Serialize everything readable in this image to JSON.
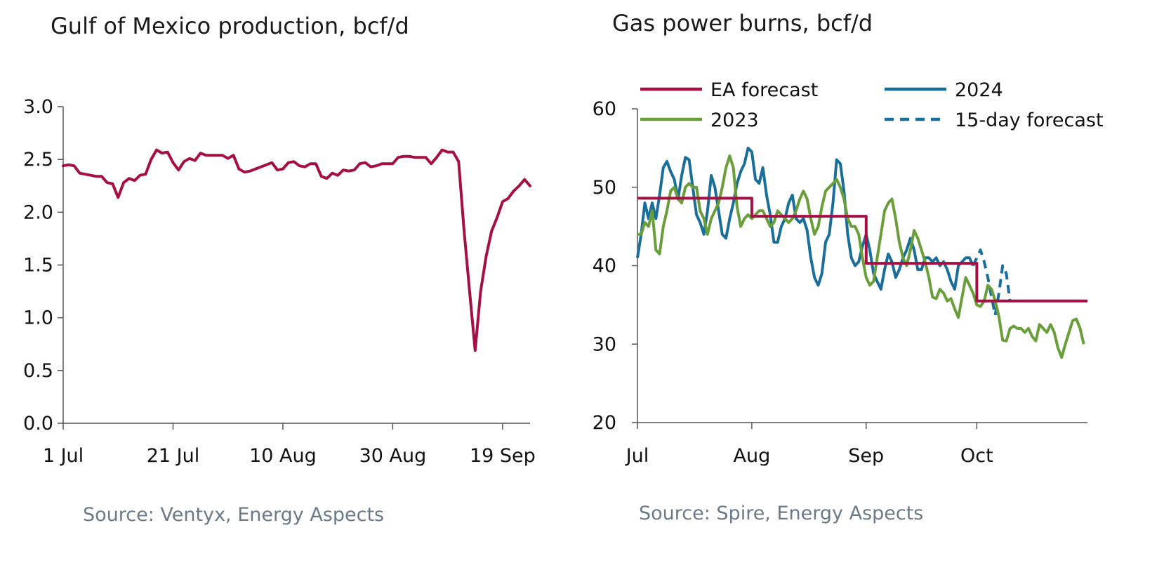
{
  "chart_data": [
    {
      "type": "line",
      "title": "Gulf of Mexico production, bcf/d",
      "source": "Source: Ventyx, Energy Aspects",
      "x_tick_labels": [
        "1 Jul",
        "21 Jul",
        "10 Aug",
        "30 Aug",
        "19 Sep"
      ],
      "x_ticks_day": [
        0,
        20,
        40,
        60,
        80
      ],
      "y_tick_labels": [
        "0.0",
        "0.5",
        "1.0",
        "1.5",
        "2.0",
        "2.5",
        "3.0"
      ],
      "ylim": [
        0,
        3
      ],
      "xlim_days": [
        0,
        85
      ],
      "grid": false,
      "colors": {
        "line": "#a50f43",
        "axis": "#555555"
      },
      "series": [
        {
          "x_day": [
            0,
            1,
            2,
            3,
            4,
            5,
            6,
            7,
            8,
            9,
            10,
            11,
            12,
            13,
            14,
            15,
            16,
            17,
            18,
            19,
            20,
            21,
            22,
            23,
            24,
            25,
            26,
            27,
            28,
            29,
            30,
            31,
            32,
            33,
            34,
            35,
            36,
            37,
            38,
            39,
            40,
            41,
            42,
            43,
            44,
            45,
            46,
            47,
            48,
            49,
            50,
            51,
            52,
            53,
            54,
            55,
            56,
            57,
            58,
            59,
            60,
            61,
            62,
            63,
            64,
            65,
            66,
            67,
            68,
            69,
            70,
            71,
            72,
            73,
            74,
            75,
            76,
            77,
            78,
            79,
            80,
            81,
            82,
            83,
            84,
            85
          ],
          "values": [
            2.44,
            2.45,
            2.44,
            2.37,
            2.36,
            2.35,
            2.34,
            2.34,
            2.28,
            2.27,
            2.14,
            2.28,
            2.32,
            2.3,
            2.35,
            2.36,
            2.5,
            2.59,
            2.56,
            2.57,
            2.47,
            2.4,
            2.48,
            2.51,
            2.49,
            2.56,
            2.54,
            2.54,
            2.54,
            2.54,
            2.51,
            2.54,
            2.41,
            2.38,
            2.39,
            2.41,
            2.43,
            2.45,
            2.47,
            2.4,
            2.41,
            2.47,
            2.48,
            2.44,
            2.43,
            2.46,
            2.46,
            2.34,
            2.32,
            2.37,
            2.35,
            2.4,
            2.39,
            2.4,
            2.46,
            2.47,
            2.43,
            2.44,
            2.46,
            2.46,
            2.46,
            2.52,
            2.53,
            2.53,
            2.52,
            2.52,
            2.52,
            2.46,
            2.52,
            2.59,
            2.57,
            2.57,
            2.48,
            1.82,
            1.25,
            0.69,
            1.25,
            1.58,
            1.82,
            1.95,
            2.1,
            2.13,
            2.2,
            2.25,
            2.31,
            2.25
          ]
        }
      ]
    },
    {
      "type": "line",
      "title": "Gas power burns, bcf/d",
      "source": "Source: Spire, Energy Aspects",
      "x_tick_labels": [
        "Jul",
        "Aug",
        "Sep",
        "Oct"
      ],
      "x_ticks_day": [
        0,
        31,
        62,
        92
      ],
      "y_tick_labels": [
        "20",
        "30",
        "40",
        "50",
        "60"
      ],
      "ylim": [
        20,
        60
      ],
      "xlim_days": [
        0,
        122
      ],
      "grid": false,
      "legend": "top",
      "colors": {
        "ea": "#a50f43",
        "y2024": "#1a6f9a",
        "y2023": "#6a9e3a",
        "axis": "#555555"
      },
      "series": [
        {
          "name": "EA forecast",
          "style": "solid",
          "x_day": [
            0,
            31,
            31,
            62,
            62,
            92,
            92,
            122
          ],
          "values": [
            48.6,
            48.6,
            46.3,
            46.3,
            40.3,
            40.3,
            35.5,
            35.5
          ]
        },
        {
          "name": "2024",
          "style": "solid",
          "x_day": [
            0,
            1,
            2,
            3,
            4,
            5,
            6,
            7,
            8,
            9,
            10,
            11,
            12,
            13,
            14,
            15,
            16,
            17,
            18,
            19,
            20,
            21,
            22,
            23,
            24,
            25,
            26,
            27,
            28,
            29,
            30,
            31,
            32,
            33,
            34,
            35,
            36,
            37,
            38,
            39,
            40,
            41,
            42,
            43,
            44,
            45,
            46,
            47,
            48,
            49,
            50,
            51,
            52,
            53,
            54,
            55,
            56,
            57,
            58,
            59,
            60,
            61,
            62,
            63,
            64,
            65,
            66,
            67,
            68,
            69,
            70,
            71,
            72,
            73,
            74,
            75,
            76,
            77,
            78,
            79,
            80,
            81,
            82,
            83,
            84,
            85,
            86,
            87,
            88,
            89,
            90,
            91
          ],
          "values": [
            41,
            44,
            48,
            46,
            48,
            46,
            49,
            52.5,
            53.3,
            52,
            51,
            48.5,
            51.5,
            53.8,
            53.5,
            50,
            46.5,
            45.5,
            44,
            47,
            51.5,
            50,
            47,
            44,
            43.5,
            46,
            48,
            50.5,
            52,
            53,
            55,
            54.5,
            51,
            50.5,
            52.5,
            49,
            46.5,
            43,
            43,
            45,
            46,
            48,
            49,
            46,
            45.5,
            46,
            44.5,
            41,
            38.5,
            37.5,
            39,
            43,
            44,
            48,
            53.5,
            53,
            49.5,
            44,
            41,
            40,
            40.5,
            42.5,
            44,
            42,
            39,
            38,
            37,
            39.5,
            41.5,
            40.5,
            38.5,
            39.5,
            41,
            42,
            43.5,
            42,
            39.5,
            39.5,
            41,
            41,
            40.5,
            41,
            40,
            40.5,
            39.5,
            38,
            37,
            40,
            40.5,
            41,
            41,
            40
          ]
        },
        {
          "name": "15-day forecast",
          "style": "dashed",
          "x_day": [
            91,
            92,
            93,
            94,
            95,
            96,
            97,
            98,
            99,
            100,
            101
          ],
          "values": [
            40,
            41,
            42,
            40.5,
            38.5,
            36,
            33.7,
            36.5,
            40,
            39,
            35.5
          ]
        },
        {
          "name": "2023",
          "style": "solid",
          "x_day": [
            0,
            1,
            2,
            3,
            4,
            5,
            6,
            7,
            8,
            9,
            10,
            11,
            12,
            13,
            14,
            15,
            16,
            17,
            18,
            19,
            20,
            21,
            22,
            23,
            24,
            25,
            26,
            27,
            28,
            29,
            30,
            31,
            32,
            33,
            34,
            35,
            36,
            37,
            38,
            39,
            40,
            41,
            42,
            43,
            44,
            45,
            46,
            47,
            48,
            49,
            50,
            51,
            52,
            53,
            54,
            55,
            56,
            57,
            58,
            59,
            60,
            61,
            62,
            63,
            64,
            65,
            66,
            67,
            68,
            69,
            70,
            71,
            72,
            73,
            74,
            75,
            76,
            77,
            78,
            79,
            80,
            81,
            82,
            83,
            84,
            85,
            86,
            87,
            88,
            89,
            90,
            91,
            92,
            93,
            94,
            95,
            96,
            97,
            98,
            99,
            100,
            101,
            102,
            103,
            104,
            105,
            106,
            107,
            108,
            109,
            110,
            111,
            112,
            113,
            114,
            115,
            116,
            117,
            118,
            119,
            120,
            121
          ],
          "values": [
            44,
            44,
            45.5,
            45,
            47,
            42,
            41.5,
            45,
            47,
            49.5,
            50,
            48.5,
            48,
            50,
            50.5,
            50,
            50,
            47,
            46,
            44,
            46,
            47,
            48,
            50,
            52.5,
            54,
            52.5,
            47.5,
            45,
            46,
            46.5,
            46,
            46.5,
            47,
            47,
            46,
            45,
            45.5,
            47,
            46.5,
            46,
            45.5,
            46,
            47,
            48.5,
            49.5,
            48.5,
            46,
            44,
            45,
            47.5,
            49.5,
            50,
            50.5,
            51,
            50,
            48.5,
            46,
            45,
            45,
            44,
            41,
            38.5,
            37.5,
            38,
            41,
            44,
            47,
            48,
            48.5,
            46,
            43,
            41,
            40,
            42,
            44.5,
            43.5,
            42,
            40.5,
            38.5,
            36,
            35.8,
            37,
            36.5,
            35.5,
            35.8,
            34.5,
            33.4,
            36,
            38.5,
            37.5,
            36.5,
            35,
            34.8,
            35.5,
            37.5,
            37,
            35.5,
            33.5,
            30.5,
            30.4,
            32,
            32.3,
            32,
            32,
            31.5,
            32,
            31,
            30.4,
            32.5,
            32,
            31.5,
            32.5,
            31.5,
            29.5,
            28.3,
            30,
            31.5,
            33,
            33.2,
            32,
            30
          ]
        }
      ]
    }
  ]
}
